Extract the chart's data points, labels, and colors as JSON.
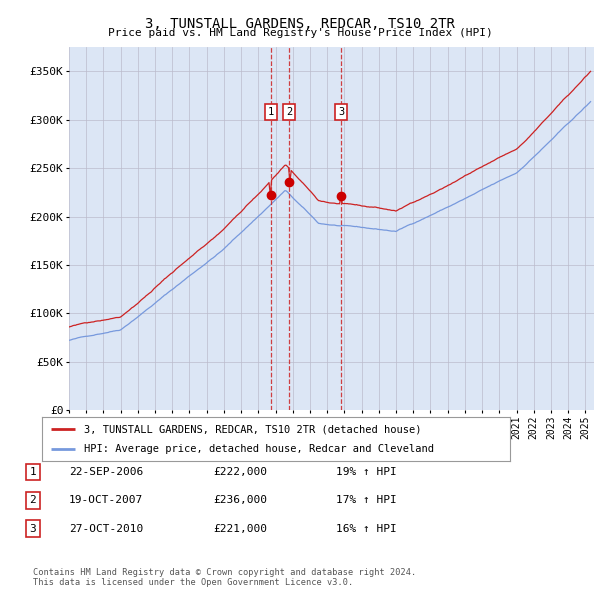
{
  "title": "3, TUNSTALL GARDENS, REDCAR, TS10 2TR",
  "subtitle": "Price paid vs. HM Land Registry's House Price Index (HPI)",
  "ylim": [
    0,
    370000
  ],
  "xlim_start": 1995.0,
  "xlim_end": 2025.5,
  "bg_color": "#dce6f5",
  "grid_color": "#bbbbcc",
  "hpi_color": "#7799dd",
  "price_color": "#cc2222",
  "sale_marker_color": "#cc0000",
  "dashed_line_color": "#cc2222",
  "transactions": [
    {
      "num": 1,
      "date_num": 2006.73,
      "price": 222000,
      "label": "1",
      "date_str": "22-SEP-2006",
      "price_str": "£222,000",
      "pct": "19% ↑ HPI"
    },
    {
      "num": 2,
      "date_num": 2007.8,
      "price": 236000,
      "label": "2",
      "date_str": "19-OCT-2007",
      "price_str": "£236,000",
      "pct": "17% ↑ HPI"
    },
    {
      "num": 3,
      "date_num": 2010.82,
      "price": 221000,
      "label": "3",
      "date_str": "27-OCT-2010",
      "price_str": "£221,000",
      "pct": "16% ↑ HPI"
    }
  ],
  "legend_label_price": "3, TUNSTALL GARDENS, REDCAR, TS10 2TR (detached house)",
  "legend_label_hpi": "HPI: Average price, detached house, Redcar and Cleveland",
  "footer": "Contains HM Land Registry data © Crown copyright and database right 2024.\nThis data is licensed under the Open Government Licence v3.0."
}
